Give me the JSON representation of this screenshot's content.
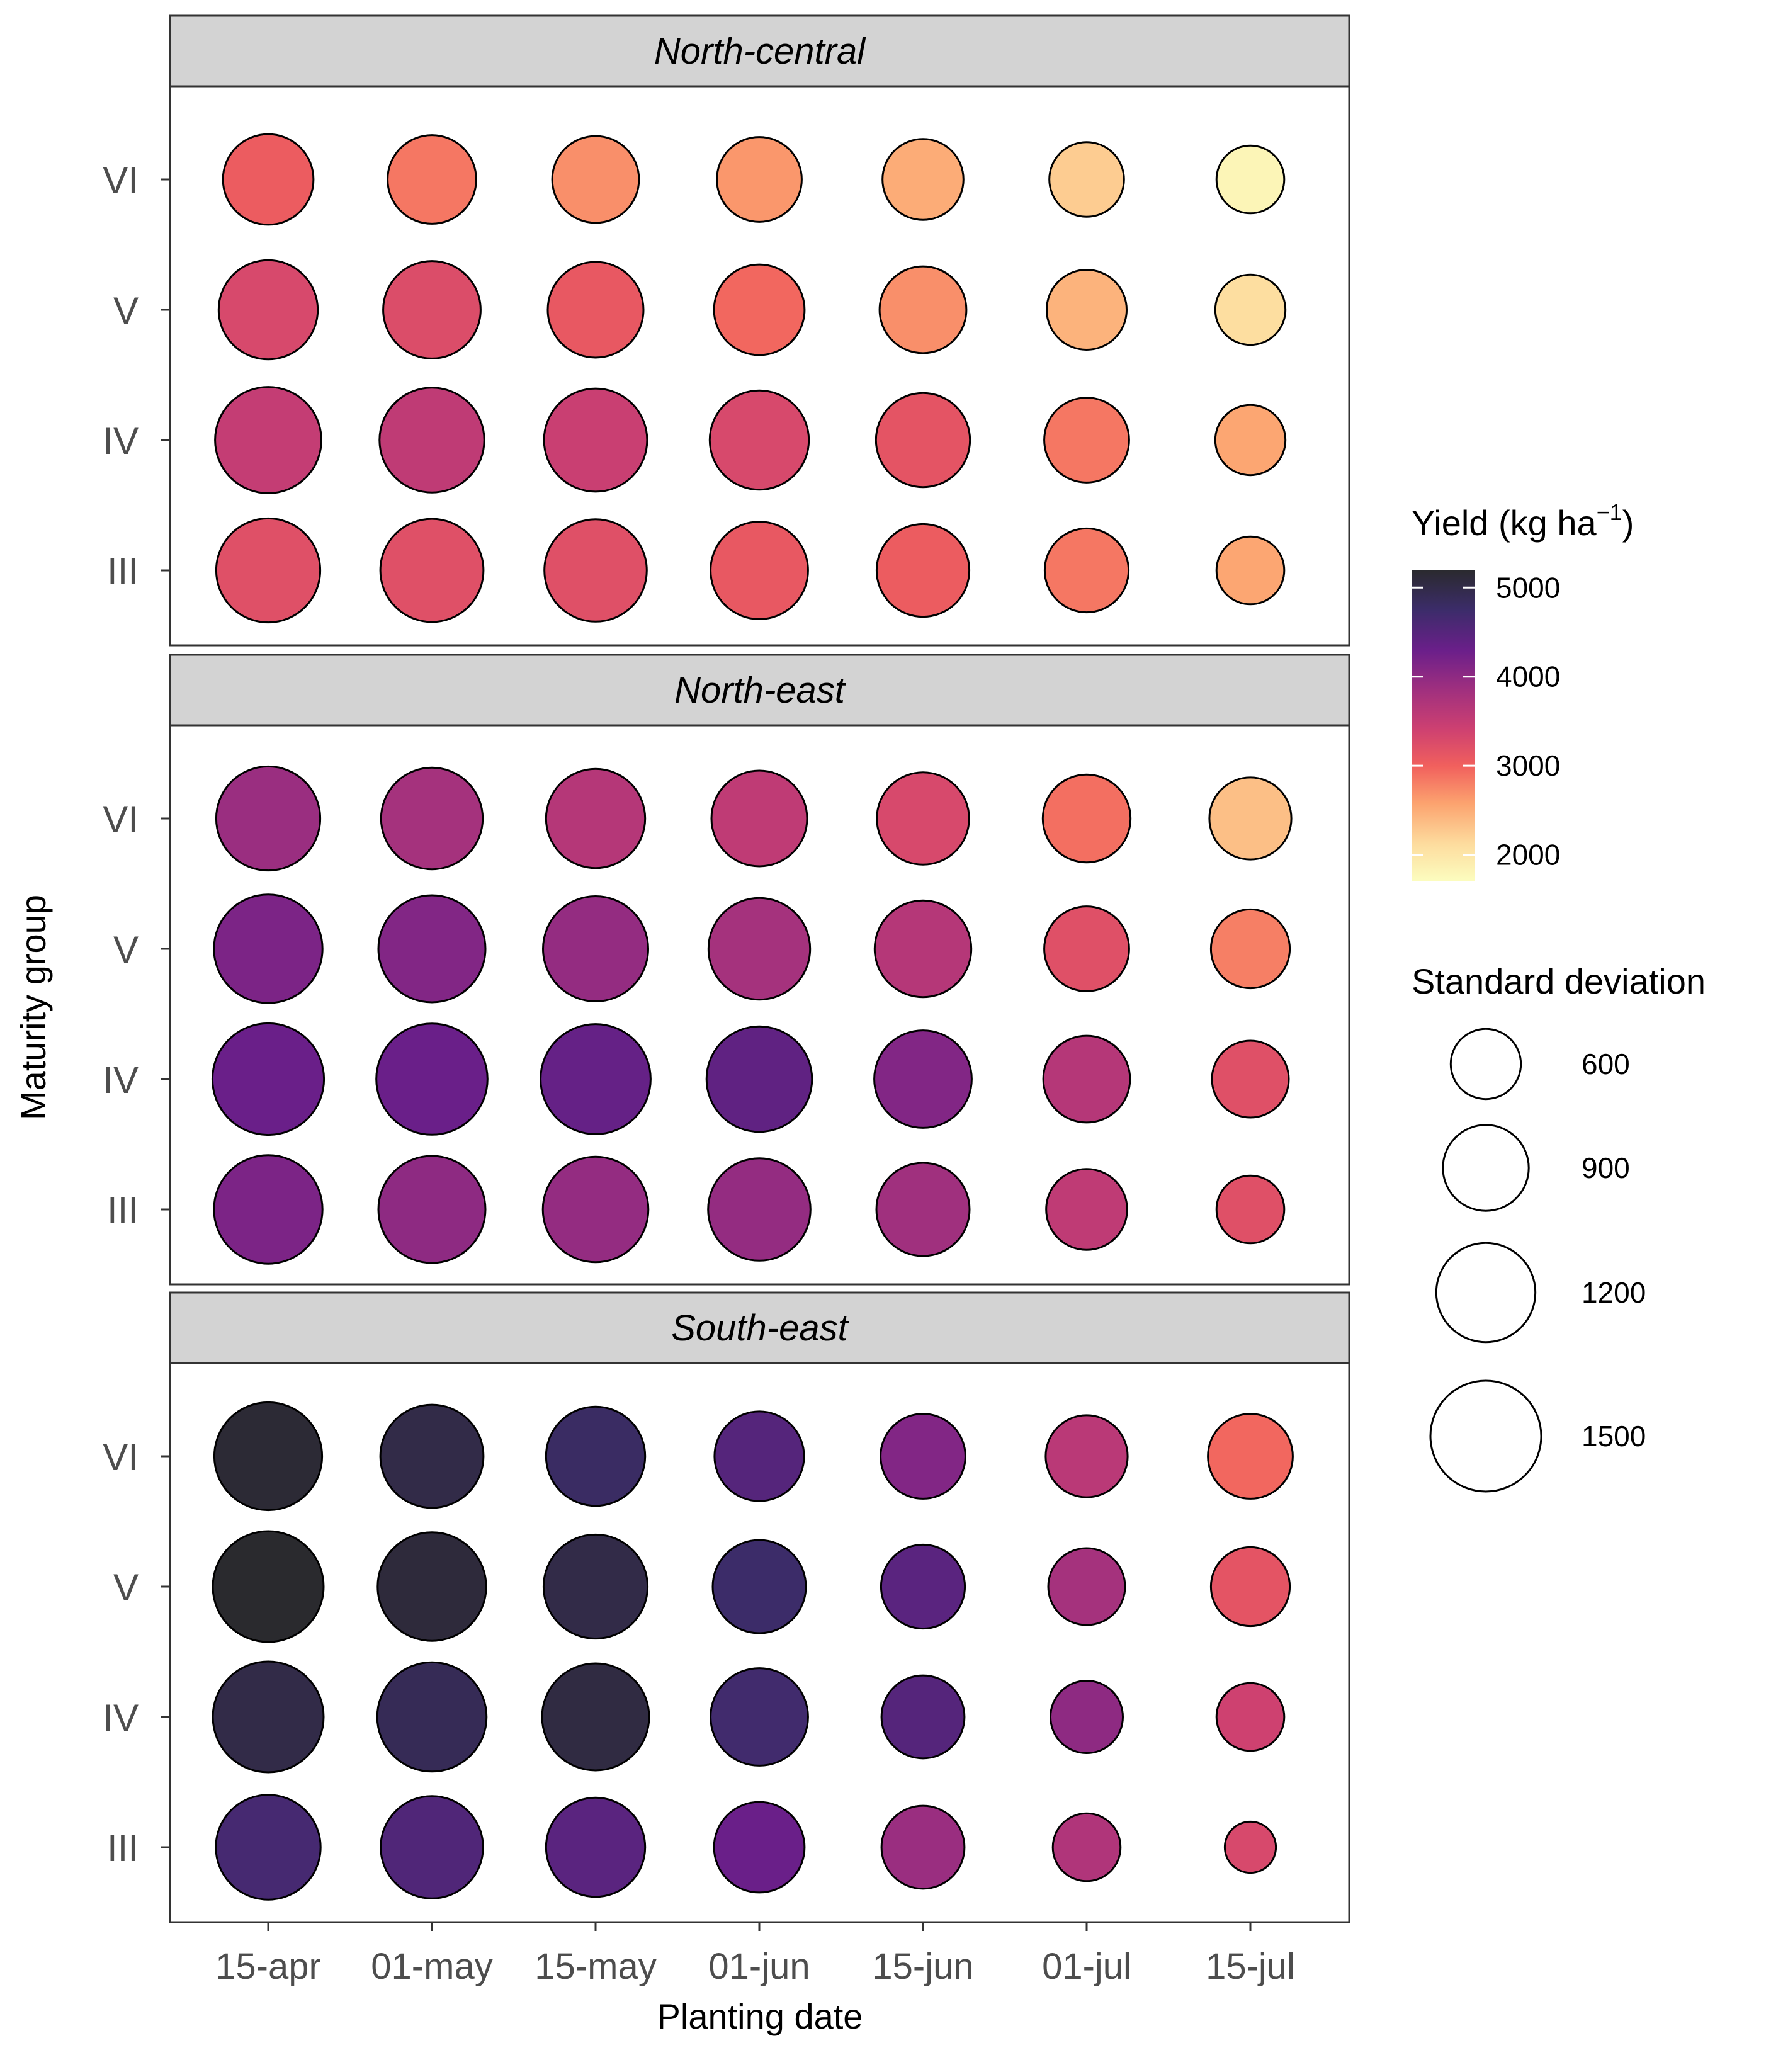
{
  "chart_data": {
    "type": "bubble",
    "xlabel": "Planting date",
    "ylabel": "Maturity group",
    "categories": [
      "15-apr",
      "01-may",
      "15-may",
      "01-jun",
      "15-jun",
      "01-jul",
      "15-jul"
    ],
    "groups": [
      "VI",
      "V",
      "IV",
      "III"
    ],
    "color_variable": {
      "title": "Yield (kg ha",
      "title_superscript": "−1",
      "title_close": ")",
      "range": [
        1700,
        5200
      ],
      "ticks": [
        5000,
        4000,
        3000,
        2000
      ],
      "tick_labels": [
        "5000",
        "4000",
        "3000",
        "2000"
      ]
    },
    "size_variable": {
      "title": "Standard deviation",
      "breaks": [
        600,
        900,
        1200,
        1500
      ],
      "break_labels": [
        "600",
        "900",
        "1200",
        "1500"
      ]
    },
    "panels": [
      {
        "title": "North-central",
        "yield": {
          "VI": [
            3050,
            2850,
            2700,
            2650,
            2500,
            2250,
            1800
          ],
          "V": [
            3300,
            3250,
            3100,
            2950,
            2700,
            2450,
            2100
          ],
          "IV": [
            3500,
            3550,
            3450,
            3300,
            3150,
            2850,
            2550
          ],
          "III": [
            3200,
            3200,
            3200,
            3100,
            3050,
            2850,
            2550
          ]
        },
        "sd": {
          "VI": [
            1000,
            960,
            920,
            880,
            800,
            680,
            560
          ],
          "V": [
            1200,
            1160,
            1120,
            1000,
            920,
            780,
            600
          ],
          "IV": [
            1380,
            1340,
            1300,
            1200,
            1080,
            880,
            600
          ],
          "III": [
            1320,
            1300,
            1280,
            1160,
            1050,
            860,
            560
          ]
        }
      },
      {
        "title": "North-east",
        "yield": {
          "VI": [
            3900,
            3800,
            3650,
            3550,
            3300,
            2900,
            2350
          ],
          "V": [
            4150,
            4100,
            3950,
            3800,
            3650,
            3200,
            2800
          ],
          "IV": [
            4300,
            4300,
            4350,
            4400,
            4100,
            3650,
            3200
          ],
          "III": [
            4150,
            4000,
            3950,
            3950,
            3850,
            3550,
            3200
          ]
        },
        "sd": {
          "VI": [
            1320,
            1260,
            1200,
            1120,
            1040,
            940,
            820
          ],
          "V": [
            1440,
            1400,
            1350,
            1260,
            1140,
            880,
            760
          ],
          "IV": [
            1520,
            1510,
            1480,
            1360,
            1160,
            920,
            720
          ],
          "III": [
            1440,
            1400,
            1360,
            1280,
            1060,
            800,
            560
          ]
        }
      },
      {
        "title": "South-east",
        "yield": {
          "VI": [
            5150,
            5000,
            4800,
            4500,
            4100,
            3600,
            2950
          ],
          "V": [
            5200,
            5100,
            5000,
            4750,
            4450,
            3800,
            3150
          ],
          "IV": [
            5000,
            4900,
            5050,
            4700,
            4500,
            4000,
            3400
          ],
          "III": [
            4650,
            4550,
            4450,
            4300,
            3900,
            3700,
            3300
          ]
        },
        "sd": {
          "VI": [
            1420,
            1300,
            1200,
            980,
            880,
            820,
            880
          ],
          "V": [
            1500,
            1440,
            1320,
            1060,
            860,
            720,
            760
          ],
          "IV": [
            1500,
            1460,
            1400,
            1160,
            840,
            640,
            560
          ],
          "III": [
            1340,
            1280,
            1200,
            1000,
            840,
            560,
            320
          ]
        }
      }
    ]
  }
}
